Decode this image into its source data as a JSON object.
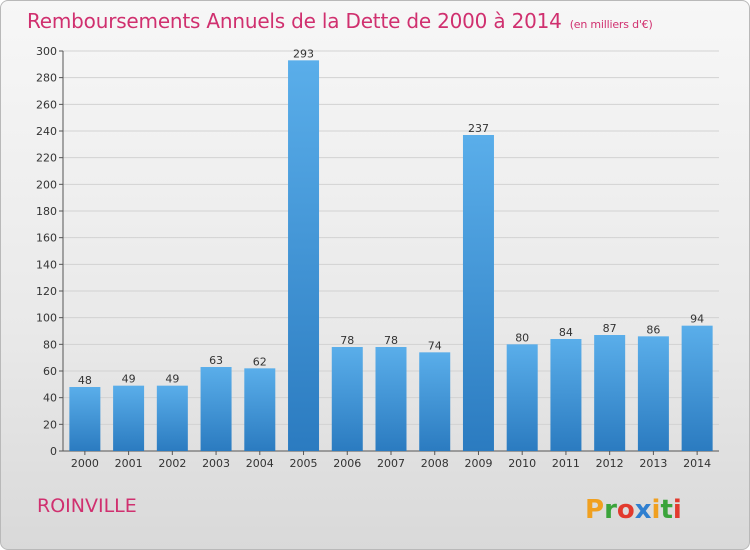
{
  "header": {
    "title": "Remboursements Annuels de la Dette de 2000 à 2014",
    "unit": "(en milliers d'€)"
  },
  "footer": {
    "commune": "ROINVILLE",
    "logo_text": "Proxiti"
  },
  "colors": {
    "title": "#d0306f",
    "bar_top": "#5aaeea",
    "bar_bottom": "#2b7bc0"
  },
  "chart_data": {
    "type": "bar",
    "title": "Remboursements Annuels de la Dette de 2000 à 2014",
    "xlabel": "",
    "ylabel": "",
    "categories": [
      "2000",
      "2001",
      "2002",
      "2003",
      "2004",
      "2005",
      "2006",
      "2007",
      "2008",
      "2009",
      "2010",
      "2011",
      "2012",
      "2013",
      "2014"
    ],
    "values": [
      48,
      49,
      49,
      63,
      62,
      293,
      78,
      78,
      74,
      237,
      80,
      84,
      87,
      86,
      94
    ],
    "ylim": [
      0,
      300
    ],
    "yticks": [
      0,
      20,
      40,
      60,
      80,
      100,
      120,
      140,
      160,
      180,
      200,
      220,
      240,
      260,
      280,
      300
    ],
    "grid": true
  }
}
